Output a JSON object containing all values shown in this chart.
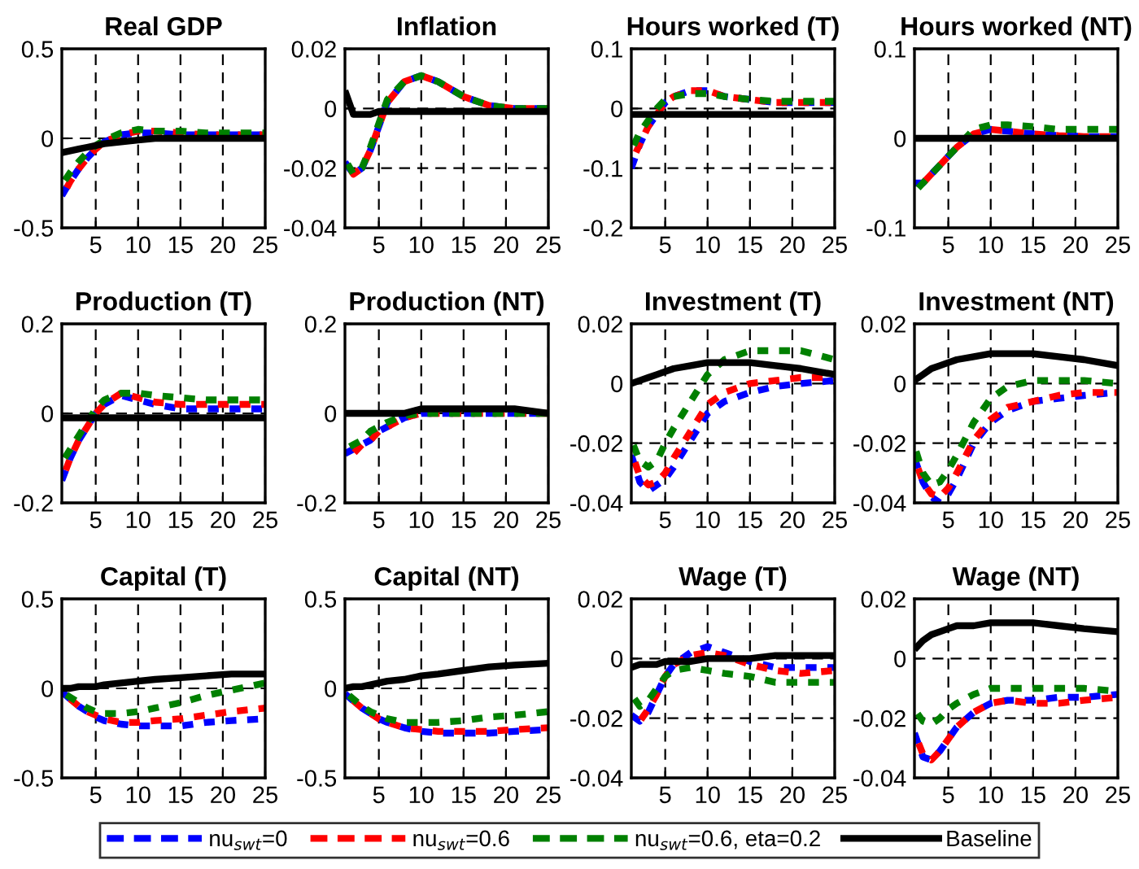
{
  "chart_data": [
    {
      "type": "line",
      "title": "Real GDP",
      "x": [
        1,
        2,
        3,
        4,
        5,
        6,
        8,
        10,
        12,
        15,
        18,
        21,
        25
      ],
      "xlim": [
        1,
        25
      ],
      "xticks": [
        5,
        10,
        15,
        20,
        25
      ],
      "ylim": [
        -0.5,
        0.5
      ],
      "yticks": [
        -0.5,
        0,
        0.5
      ],
      "grid": true,
      "legend": "bottom",
      "series": [
        {
          "name": "nu$_{swt}$=0",
          "color": "#0000ff",
          "line_style": "dashed",
          "values": [
            -0.32,
            -0.24,
            -0.17,
            -0.11,
            -0.06,
            -0.02,
            0.02,
            0.03,
            0.03,
            0.02,
            0.02,
            0.02,
            0.02
          ]
        },
        {
          "name": "nu$_{swt}$=0.6",
          "color": "#ff0000",
          "line_style": "dashed",
          "values": [
            -0.33,
            -0.24,
            -0.17,
            -0.11,
            -0.06,
            -0.02,
            0.02,
            0.04,
            0.04,
            0.03,
            0.02,
            0.02,
            0.02
          ]
        },
        {
          "name": "nu$_{swt}$=0.6, eta=0.2",
          "color": "#008000",
          "line_style": "dashed",
          "values": [
            -0.26,
            -0.19,
            -0.13,
            -0.08,
            -0.04,
            -0.01,
            0.03,
            0.05,
            0.04,
            0.04,
            0.03,
            0.03,
            0.03
          ]
        },
        {
          "name": "Baseline",
          "color": "#000000",
          "line_style": "solid",
          "values": [
            -0.08,
            -0.07,
            -0.06,
            -0.05,
            -0.04,
            -0.03,
            -0.02,
            -0.01,
            0,
            0,
            0,
            0,
            0
          ]
        }
      ]
    },
    {
      "type": "line",
      "title": "Inflation",
      "x": [
        1,
        2,
        3,
        4,
        5,
        6,
        8,
        10,
        12,
        15,
        18,
        21,
        25
      ],
      "xlim": [
        1,
        25
      ],
      "xticks": [
        5,
        10,
        15,
        20,
        25
      ],
      "ylim": [
        -0.04,
        0.02
      ],
      "yticks": [
        -0.04,
        -0.02,
        0,
        0.02
      ],
      "grid": true,
      "series": [
        {
          "color": "#0000ff",
          "line_style": "dashed",
          "values": [
            -0.018,
            -0.022,
            -0.02,
            -0.014,
            -0.006,
            0.002,
            0.009,
            0.011,
            0.009,
            0.004,
            0.001,
            0,
            0
          ]
        },
        {
          "color": "#ff0000",
          "line_style": "dashed",
          "values": [
            -0.018,
            -0.022,
            -0.02,
            -0.014,
            -0.006,
            0.002,
            0.009,
            0.011,
            0.009,
            0.004,
            0.001,
            0,
            0
          ]
        },
        {
          "color": "#008000",
          "line_style": "dashed",
          "values": [
            -0.017,
            -0.022,
            -0.02,
            -0.013,
            -0.005,
            0.003,
            0.009,
            0.011,
            0.009,
            0.004,
            0.001,
            0,
            0
          ]
        },
        {
          "color": "#000000",
          "line_style": "solid",
          "values": [
            0.006,
            -0.002,
            -0.002,
            -0.002,
            -0.001,
            -0.001,
            -0.001,
            -0.001,
            -0.001,
            -0.001,
            -0.001,
            -0.001,
            -0.001
          ]
        }
      ]
    },
    {
      "type": "line",
      "title": "Hours worked (T)",
      "x": [
        1,
        2,
        3,
        4,
        5,
        6,
        8,
        10,
        12,
        15,
        18,
        21,
        25
      ],
      "xlim": [
        1,
        25
      ],
      "xticks": [
        5,
        10,
        15,
        20,
        25
      ],
      "ylim": [
        -0.2,
        0.1
      ],
      "yticks": [
        -0.2,
        -0.1,
        0,
        0.1
      ],
      "grid": true,
      "series": [
        {
          "color": "#0000ff",
          "line_style": "dashed",
          "values": [
            -0.1,
            -0.06,
            -0.03,
            -0.01,
            0.01,
            0.02,
            0.03,
            0.03,
            0.02,
            0.015,
            0.01,
            0.01,
            0.01
          ]
        },
        {
          "color": "#ff0000",
          "line_style": "dashed",
          "values": [
            -0.09,
            -0.06,
            -0.03,
            -0.01,
            0.01,
            0.02,
            0.03,
            0.03,
            0.02,
            0.015,
            0.01,
            0.01,
            0.01
          ]
        },
        {
          "color": "#008000",
          "line_style": "dashed",
          "values": [
            -0.07,
            -0.04,
            -0.02,
            0,
            0.015,
            0.02,
            0.025,
            0.025,
            0.02,
            0.015,
            0.012,
            0.012,
            0.012
          ]
        },
        {
          "color": "#000000",
          "line_style": "solid",
          "values": [
            -0.01,
            -0.01,
            -0.01,
            -0.01,
            -0.01,
            -0.01,
            -0.01,
            -0.01,
            -0.01,
            -0.01,
            -0.01,
            -0.01,
            -0.01
          ]
        }
      ]
    },
    {
      "type": "line",
      "title": "Hours worked (NT)",
      "x": [
        1,
        2,
        3,
        4,
        5,
        6,
        8,
        10,
        12,
        15,
        18,
        21,
        25
      ],
      "xlim": [
        1,
        25
      ],
      "xticks": [
        5,
        10,
        15,
        20,
        25
      ],
      "ylim": [
        -0.1,
        0.1
      ],
      "yticks": [
        -0.1,
        0,
        0.1
      ],
      "grid": true,
      "series": [
        {
          "color": "#0000ff",
          "line_style": "dashed",
          "values": [
            -0.05,
            -0.05,
            -0.04,
            -0.03,
            -0.02,
            -0.01,
            0.005,
            0.01,
            0.008,
            0.005,
            0.003,
            0.002,
            0.002
          ]
        },
        {
          "color": "#ff0000",
          "line_style": "dashed",
          "values": [
            -0.05,
            -0.05,
            -0.04,
            -0.03,
            -0.02,
            -0.01,
            0.005,
            0.01,
            0.008,
            0.005,
            0.003,
            0.002,
            0.002
          ]
        },
        {
          "color": "#008000",
          "line_style": "dashed",
          "values": [
            -0.06,
            -0.05,
            -0.04,
            -0.03,
            -0.02,
            -0.01,
            0.01,
            0.015,
            0.015,
            0.013,
            0.01,
            0.01,
            0.01
          ]
        },
        {
          "color": "#000000",
          "line_style": "solid",
          "values": [
            0,
            0,
            0,
            0,
            0,
            0,
            0,
            0,
            0,
            0,
            0,
            0,
            0
          ]
        }
      ]
    },
    {
      "type": "line",
      "title": "Production (T)",
      "x": [
        1,
        2,
        3,
        4,
        5,
        6,
        8,
        10,
        12,
        15,
        18,
        21,
        25
      ],
      "xlim": [
        1,
        25
      ],
      "xticks": [
        5,
        10,
        15,
        20,
        25
      ],
      "ylim": [
        -0.2,
        0.2
      ],
      "yticks": [
        -0.2,
        0,
        0.2
      ],
      "grid": true,
      "series": [
        {
          "color": "#0000ff",
          "line_style": "dashed",
          "values": [
            -0.15,
            -0.1,
            -0.06,
            -0.03,
            0,
            0.02,
            0.04,
            0.03,
            0.02,
            0.01,
            0.01,
            0.01,
            0.01
          ]
        },
        {
          "color": "#ff0000",
          "line_style": "dashed",
          "values": [
            -0.15,
            -0.1,
            -0.06,
            -0.03,
            0,
            0.02,
            0.045,
            0.035,
            0.025,
            0.02,
            0.02,
            0.02,
            0.02
          ]
        },
        {
          "color": "#008000",
          "line_style": "dashed",
          "values": [
            -0.11,
            -0.08,
            -0.05,
            -0.02,
            0.01,
            0.03,
            0.045,
            0.045,
            0.04,
            0.035,
            0.03,
            0.03,
            0.03
          ]
        },
        {
          "color": "#000000",
          "line_style": "solid",
          "values": [
            -0.01,
            -0.01,
            -0.01,
            -0.01,
            -0.01,
            -0.01,
            -0.01,
            -0.01,
            -0.01,
            -0.01,
            -0.01,
            -0.01,
            -0.01
          ]
        }
      ]
    },
    {
      "type": "line",
      "title": "Production (NT)",
      "x": [
        1,
        2,
        3,
        4,
        5,
        6,
        8,
        10,
        12,
        15,
        18,
        21,
        25
      ],
      "xlim": [
        1,
        25
      ],
      "xticks": [
        5,
        10,
        15,
        20,
        25
      ],
      "ylim": [
        -0.2,
        0.2
      ],
      "yticks": [
        -0.2,
        0,
        0.2
      ],
      "grid": true,
      "series": [
        {
          "color": "#0000ff",
          "line_style": "dashed",
          "values": [
            -0.09,
            -0.08,
            -0.07,
            -0.06,
            -0.04,
            -0.03,
            -0.01,
            0,
            0,
            0,
            0,
            0,
            0
          ]
        },
        {
          "color": "#ff0000",
          "line_style": "dashed",
          "values": [
            -0.1,
            -0.09,
            -0.07,
            -0.06,
            -0.04,
            -0.03,
            -0.01,
            0,
            0,
            0,
            0,
            0,
            0
          ]
        },
        {
          "color": "#008000",
          "line_style": "dashed",
          "values": [
            -0.08,
            -0.07,
            -0.06,
            -0.04,
            -0.03,
            -0.02,
            -0.005,
            0,
            0,
            0,
            0,
            0,
            0
          ]
        },
        {
          "color": "#000000",
          "line_style": "solid",
          "values": [
            0,
            0,
            0,
            0,
            0,
            0,
            0,
            0.01,
            0.01,
            0.01,
            0.01,
            0.01,
            0
          ]
        }
      ]
    },
    {
      "type": "line",
      "title": "Investment (T)",
      "x": [
        1,
        2,
        3,
        4,
        5,
        6,
        8,
        10,
        12,
        15,
        18,
        21,
        25
      ],
      "xlim": [
        1,
        25
      ],
      "xticks": [
        5,
        10,
        15,
        20,
        25
      ],
      "ylim": [
        -0.04,
        0.02
      ],
      "yticks": [
        -0.04,
        -0.02,
        0,
        0.02
      ],
      "grid": true,
      "series": [
        {
          "color": "#0000ff",
          "line_style": "dashed",
          "values": [
            -0.024,
            -0.033,
            -0.036,
            -0.034,
            -0.032,
            -0.028,
            -0.019,
            -0.01,
            -0.006,
            -0.003,
            -0.001,
            0,
            0.001
          ]
        },
        {
          "color": "#ff0000",
          "line_style": "dashed",
          "values": [
            -0.023,
            -0.031,
            -0.034,
            -0.033,
            -0.03,
            -0.025,
            -0.016,
            -0.007,
            -0.003,
            0,
            0.001,
            0.002,
            0.002
          ]
        },
        {
          "color": "#008000",
          "line_style": "dashed",
          "values": [
            -0.019,
            -0.026,
            -0.028,
            -0.026,
            -0.02,
            -0.015,
            -0.006,
            0.003,
            0.008,
            0.011,
            0.011,
            0.011,
            0.008
          ]
        },
        {
          "color": "#000000",
          "line_style": "solid",
          "values": [
            0,
            0.001,
            0.002,
            0.003,
            0.004,
            0.005,
            0.006,
            0.007,
            0.007,
            0.007,
            0.006,
            0.005,
            0.003
          ]
        }
      ]
    },
    {
      "type": "line",
      "title": "Investment (NT)",
      "x": [
        1,
        2,
        3,
        4,
        5,
        6,
        8,
        10,
        12,
        15,
        18,
        21,
        25
      ],
      "xlim": [
        1,
        25
      ],
      "xticks": [
        5,
        10,
        15,
        20,
        25
      ],
      "ylim": [
        -0.04,
        0.02
      ],
      "yticks": [
        -0.04,
        -0.02,
        0,
        0.02
      ],
      "grid": true,
      "series": [
        {
          "color": "#0000ff",
          "line_style": "dashed",
          "values": [
            -0.025,
            -0.033,
            -0.038,
            -0.04,
            -0.037,
            -0.032,
            -0.02,
            -0.013,
            -0.009,
            -0.006,
            -0.005,
            -0.004,
            -0.003
          ]
        },
        {
          "color": "#ff0000",
          "line_style": "dashed",
          "values": [
            -0.025,
            -0.033,
            -0.037,
            -0.038,
            -0.035,
            -0.03,
            -0.019,
            -0.012,
            -0.008,
            -0.006,
            -0.004,
            -0.003,
            -0.003
          ]
        },
        {
          "color": "#008000",
          "line_style": "dashed",
          "values": [
            -0.021,
            -0.03,
            -0.034,
            -0.033,
            -0.029,
            -0.024,
            -0.013,
            -0.005,
            -0.001,
            0.001,
            0.001,
            0.001,
            0
          ]
        },
        {
          "color": "#000000",
          "line_style": "solid",
          "values": [
            0.001,
            0.003,
            0.005,
            0.006,
            0.007,
            0.008,
            0.009,
            0.01,
            0.01,
            0.01,
            0.009,
            0.008,
            0.006
          ]
        }
      ]
    },
    {
      "type": "line",
      "title": "Capital (T)",
      "x": [
        1,
        2,
        3,
        4,
        5,
        6,
        8,
        10,
        12,
        15,
        18,
        21,
        25
      ],
      "xlim": [
        1,
        25
      ],
      "xticks": [
        5,
        10,
        15,
        20,
        25
      ],
      "ylim": [
        -0.5,
        0.5
      ],
      "yticks": [
        -0.5,
        0,
        0.5
      ],
      "grid": true,
      "series": [
        {
          "color": "#0000ff",
          "line_style": "dashed",
          "values": [
            -0.02,
            -0.06,
            -0.1,
            -0.13,
            -0.16,
            -0.18,
            -0.2,
            -0.21,
            -0.21,
            -0.21,
            -0.19,
            -0.18,
            -0.17
          ]
        },
        {
          "color": "#ff0000",
          "line_style": "dashed",
          "values": [
            -0.02,
            -0.06,
            -0.1,
            -0.13,
            -0.15,
            -0.17,
            -0.19,
            -0.19,
            -0.18,
            -0.17,
            -0.15,
            -0.13,
            -0.11
          ]
        },
        {
          "color": "#008000",
          "line_style": "dashed",
          "values": [
            -0.02,
            -0.05,
            -0.08,
            -0.11,
            -0.13,
            -0.14,
            -0.14,
            -0.13,
            -0.11,
            -0.08,
            -0.04,
            -0.01,
            0.03
          ]
        },
        {
          "color": "#000000",
          "line_style": "solid",
          "values": [
            0,
            0,
            0.01,
            0.01,
            0.01,
            0.02,
            0.03,
            0.04,
            0.05,
            0.06,
            0.07,
            0.08,
            0.08
          ]
        }
      ]
    },
    {
      "type": "line",
      "title": "Capital (NT)",
      "x": [
        1,
        2,
        3,
        4,
        5,
        6,
        8,
        10,
        12,
        15,
        18,
        21,
        25
      ],
      "xlim": [
        1,
        25
      ],
      "xticks": [
        5,
        10,
        15,
        20,
        25
      ],
      "ylim": [
        -0.5,
        0.5
      ],
      "yticks": [
        -0.5,
        0,
        0.5
      ],
      "grid": true,
      "series": [
        {
          "color": "#0000ff",
          "line_style": "dashed",
          "values": [
            -0.03,
            -0.07,
            -0.11,
            -0.14,
            -0.17,
            -0.19,
            -0.22,
            -0.24,
            -0.25,
            -0.25,
            -0.25,
            -0.24,
            -0.23
          ]
        },
        {
          "color": "#ff0000",
          "line_style": "dashed",
          "values": [
            -0.03,
            -0.07,
            -0.11,
            -0.14,
            -0.17,
            -0.19,
            -0.22,
            -0.23,
            -0.24,
            -0.24,
            -0.24,
            -0.23,
            -0.22
          ]
        },
        {
          "color": "#008000",
          "line_style": "dashed",
          "values": [
            -0.02,
            -0.06,
            -0.1,
            -0.13,
            -0.15,
            -0.17,
            -0.19,
            -0.19,
            -0.19,
            -0.18,
            -0.16,
            -0.15,
            -0.13
          ]
        },
        {
          "color": "#000000",
          "line_style": "solid",
          "values": [
            0,
            0.01,
            0.01,
            0.02,
            0.03,
            0.04,
            0.05,
            0.07,
            0.08,
            0.1,
            0.12,
            0.13,
            0.14
          ]
        }
      ]
    },
    {
      "type": "line",
      "title": "Wage (T)",
      "x": [
        1,
        2,
        3,
        4,
        5,
        6,
        8,
        10,
        12,
        15,
        18,
        21,
        25
      ],
      "xlim": [
        1,
        25
      ],
      "xticks": [
        5,
        10,
        15,
        20,
        25
      ],
      "ylim": [
        -0.04,
        0.02
      ],
      "yticks": [
        -0.04,
        -0.02,
        0,
        0.02
      ],
      "grid": true,
      "series": [
        {
          "color": "#0000ff",
          "line_style": "dashed",
          "values": [
            -0.019,
            -0.021,
            -0.018,
            -0.012,
            -0.006,
            -0.002,
            0.002,
            0.004,
            0.002,
            -0.001,
            -0.003,
            -0.003,
            -0.003
          ]
        },
        {
          "color": "#ff0000",
          "line_style": "dashed",
          "values": [
            -0.02,
            -0.021,
            -0.017,
            -0.012,
            -0.006,
            -0.002,
            0.001,
            0.002,
            0.001,
            -0.002,
            -0.004,
            -0.005,
            -0.004
          ]
        },
        {
          "color": "#008000",
          "line_style": "dashed",
          "values": [
            -0.012,
            -0.016,
            -0.014,
            -0.01,
            -0.006,
            -0.004,
            -0.003,
            -0.004,
            -0.005,
            -0.006,
            -0.008,
            -0.008,
            -0.008
          ]
        },
        {
          "color": "#000000",
          "line_style": "solid",
          "values": [
            -0.003,
            -0.002,
            -0.002,
            -0.002,
            -0.001,
            -0.001,
            -0.001,
            0,
            0,
            0,
            0.001,
            0.001,
            0.001
          ]
        }
      ]
    },
    {
      "type": "line",
      "title": "Wage (NT)",
      "x": [
        1,
        2,
        3,
        4,
        5,
        6,
        8,
        10,
        12,
        15,
        18,
        21,
        25
      ],
      "xlim": [
        1,
        25
      ],
      "xticks": [
        5,
        10,
        15,
        20,
        25
      ],
      "ylim": [
        -0.04,
        0.02
      ],
      "yticks": [
        -0.04,
        -0.02,
        0,
        0.02
      ],
      "grid": true,
      "series": [
        {
          "color": "#0000ff",
          "line_style": "dashed",
          "values": [
            -0.025,
            -0.033,
            -0.034,
            -0.031,
            -0.027,
            -0.023,
            -0.018,
            -0.015,
            -0.014,
            -0.014,
            -0.013,
            -0.013,
            -0.012
          ]
        },
        {
          "color": "#ff0000",
          "line_style": "dashed",
          "values": [
            -0.025,
            -0.032,
            -0.034,
            -0.031,
            -0.027,
            -0.023,
            -0.018,
            -0.015,
            -0.014,
            -0.015,
            -0.015,
            -0.014,
            -0.013
          ]
        },
        {
          "color": "#008000",
          "line_style": "dashed",
          "values": [
            -0.017,
            -0.021,
            -0.022,
            -0.02,
            -0.017,
            -0.015,
            -0.012,
            -0.01,
            -0.01,
            -0.01,
            -0.01,
            -0.01,
            -0.011
          ]
        },
        {
          "color": "#000000",
          "line_style": "solid",
          "values": [
            0.003,
            0.006,
            0.008,
            0.009,
            0.01,
            0.011,
            0.011,
            0.012,
            0.012,
            0.012,
            0.011,
            0.01,
            0.009
          ]
        }
      ]
    }
  ]
}
